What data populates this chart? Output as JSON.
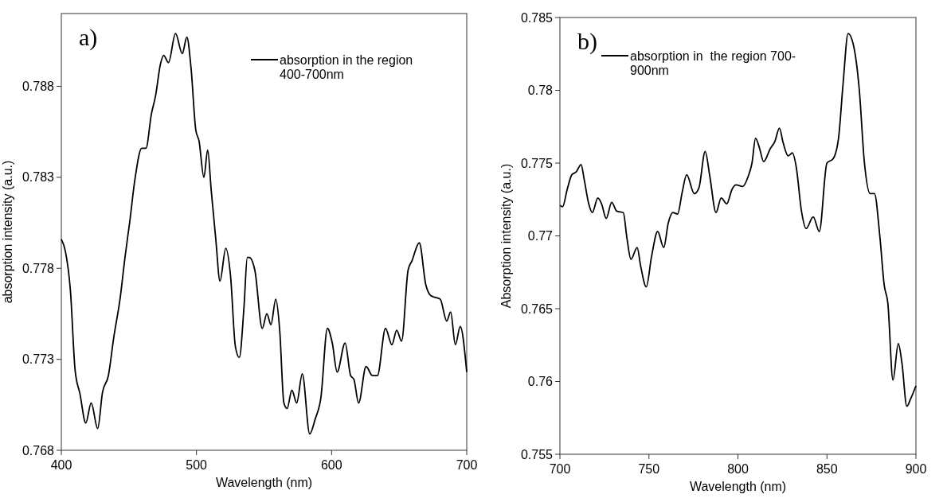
{
  "chart_data": [
    {
      "type": "line",
      "annotations": [
        "a)"
      ],
      "xlabel": "Wavelength (nm)",
      "ylabel": "absorption intensity (a.u.)",
      "xlim": [
        400,
        700
      ],
      "xticks": [
        400,
        500,
        600,
        700
      ],
      "ylim": [
        0.768,
        0.792
      ],
      "yticks": [
        0.768,
        0.773,
        0.778,
        0.783,
        0.788
      ],
      "legend": "top right",
      "grid": false,
      "marker": "none",
      "line_style": "solid",
      "series": [
        {
          "name": "absorption in the region 400-700nm",
          "color": "#000000",
          "x": [
            400,
            403.1,
            406.7,
            410.2,
            413.8,
            418.1,
            422.1,
            426.9,
            430.5,
            434.8,
            438.8,
            443.6,
            447.1,
            450.7,
            454.3,
            459.5,
            462.6,
            466.7,
            469.8,
            473.3,
            475.7,
            479.3,
            484.5,
            489.5,
            492.9,
            496,
            499.5,
            501.9,
            505.5,
            508.3,
            510.9,
            514.3,
            517.4,
            521.7,
            525.2,
            528.8,
            531.7,
            535.2,
            537.6,
            539.1,
            543.2,
            548.7,
            552.1,
            555.1,
            558.7,
            561.6,
            564.7,
            567.1,
            570.6,
            574.2,
            578.3,
            583.8,
            587.8,
            592.1,
            596.9,
            600.5,
            604.1,
            610,
            614.1,
            616.5,
            620,
            625.5,
            630.3,
            633.9,
            639.9,
            644.6,
            648.2,
            651.8,
            656.6,
            659.4,
            664.9,
            669.7,
            673.3,
            676.8,
            680.4,
            685.2,
            688.1,
            691.6,
            695.2,
            700
          ],
          "values": [
            0.7796,
            0.7789,
            0.7768,
            0.7724,
            0.7711,
            0.7695,
            0.7706,
            0.7692,
            0.7712,
            0.7721,
            0.7742,
            0.7764,
            0.7786,
            0.7806,
            0.7828,
            0.7846,
            0.7846,
            0.7865,
            0.7875,
            0.7892,
            0.7897,
            0.7893,
            0.7909,
            0.7898,
            0.7907,
            0.789,
            0.7856,
            0.785,
            0.783,
            0.7845,
            0.7823,
            0.7796,
            0.7773,
            0.7791,
            0.7776,
            0.7737,
            0.7731,
            0.7759,
            0.7786,
            0.7786,
            0.7779,
            0.7747,
            0.7755,
            0.7749,
            0.7763,
            0.7746,
            0.7706,
            0.7703,
            0.7713,
            0.7706,
            0.7722,
            0.7689,
            0.7697,
            0.7709,
            0.7747,
            0.7739,
            0.7723,
            0.7739,
            0.7721,
            0.7719,
            0.7706,
            0.7726,
            0.7721,
            0.7721,
            0.7747,
            0.7738,
            0.7746,
            0.774,
            0.7779,
            0.7784,
            0.7794,
            0.7771,
            0.7765,
            0.7764,
            0.7763,
            0.7751,
            0.7756,
            0.7738,
            0.7748,
            0.7723
          ]
        }
      ]
    },
    {
      "type": "line",
      "annotations": [
        "b)"
      ],
      "xlabel": "Wavelength (nm)",
      "ylabel": "Absorption intensity (a.u.)",
      "xlim": [
        700,
        900
      ],
      "xticks": [
        700,
        750,
        800,
        850,
        900
      ],
      "ylim": [
        0.755,
        0.785
      ],
      "yticks": [
        0.755,
        0.76,
        0.765,
        0.77,
        0.775,
        0.78,
        0.785
      ],
      "legend": "top left",
      "grid": false,
      "marker": "none",
      "line_style": "solid",
      "series": [
        {
          "name": "absorption in  the region 700-900nm",
          "color": "#000000",
          "x": [
            700.1,
            701.5,
            704.1,
            706.7,
            709.2,
            711.9,
            713.6,
            716.2,
            718.2,
            721.3,
            723.4,
            726,
            729.1,
            731.9,
            735.6,
            737.7,
            739.9,
            743.4,
            745.4,
            748.5,
            751.5,
            754.9,
            758.3,
            760.9,
            763.5,
            766.1,
            768.7,
            771.2,
            775.5,
            778.1,
            781.6,
            784.2,
            787.7,
            790.6,
            793.7,
            796.7,
            798.9,
            802.7,
            805.8,
            807.9,
            809.9,
            812.2,
            814.4,
            818.2,
            820.8,
            823.3,
            825.4,
            828.2,
            830.6,
            832.8,
            835.7,
            838.3,
            842.3,
            845.7,
            850,
            853.5,
            856.6,
            859.1,
            861.9,
            864.9,
            868.2,
            871,
            874.3,
            876.7,
            879.7,
            882.2,
            884.2,
            887.1,
            890.1,
            892.1,
            894.9,
            897,
            900
          ],
          "values": [
            0.7721,
            0.772,
            0.7732,
            0.7742,
            0.7744,
            0.7749,
            0.7739,
            0.7722,
            0.7716,
            0.7726,
            0.7722,
            0.7712,
            0.7723,
            0.7717,
            0.7716,
            0.7698,
            0.7684,
            0.7692,
            0.7679,
            0.7665,
            0.7686,
            0.7703,
            0.7692,
            0.7709,
            0.7716,
            0.7715,
            0.773,
            0.7742,
            0.7729,
            0.7733,
            0.7758,
            0.7741,
            0.7716,
            0.7726,
            0.7722,
            0.7732,
            0.7735,
            0.7734,
            0.7741,
            0.775,
            0.7767,
            0.776,
            0.7751,
            0.776,
            0.7765,
            0.7774,
            0.7764,
            0.7755,
            0.7757,
            0.7747,
            0.7717,
            0.7705,
            0.7713,
            0.7703,
            0.775,
            0.7753,
            0.7768,
            0.7805,
            0.7839,
            0.7831,
            0.78,
            0.7751,
            0.7729,
            0.7729,
            0.77,
            0.7666,
            0.7654,
            0.7601,
            0.7626,
            0.7613,
            0.7583,
            0.7588,
            0.7597
          ]
        }
      ]
    }
  ]
}
